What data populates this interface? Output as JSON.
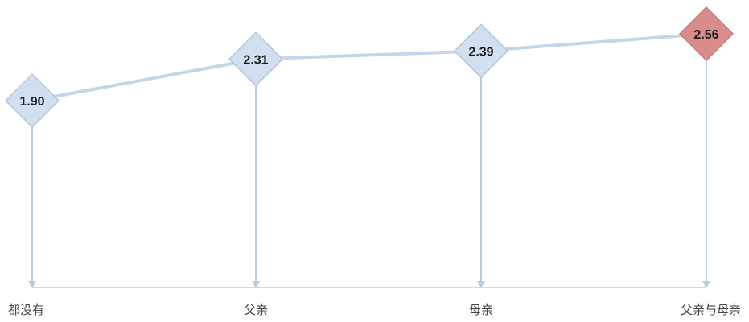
{
  "chart_data": {
    "type": "line",
    "categories": [
      "都没有",
      "父亲",
      "母亲",
      "父亲与母亲"
    ],
    "values": [
      1.9,
      2.31,
      2.39,
      2.56
    ],
    "value_labels": [
      "1.90",
      "2.31",
      "2.39",
      "2.56"
    ],
    "ylim": [
      0.0,
      2.7
    ],
    "grid": false,
    "legend": "none",
    "highlight_index": 3,
    "colors": {
      "line": "#c5d5e8",
      "marker_fill": "#d3dff0",
      "marker_stroke": "#b5c7dd",
      "highlight_fill": "#d98c8c",
      "highlight_stroke": "#c97b7b",
      "axis": "#b8cce4",
      "dropline": "#b8cce4"
    }
  }
}
